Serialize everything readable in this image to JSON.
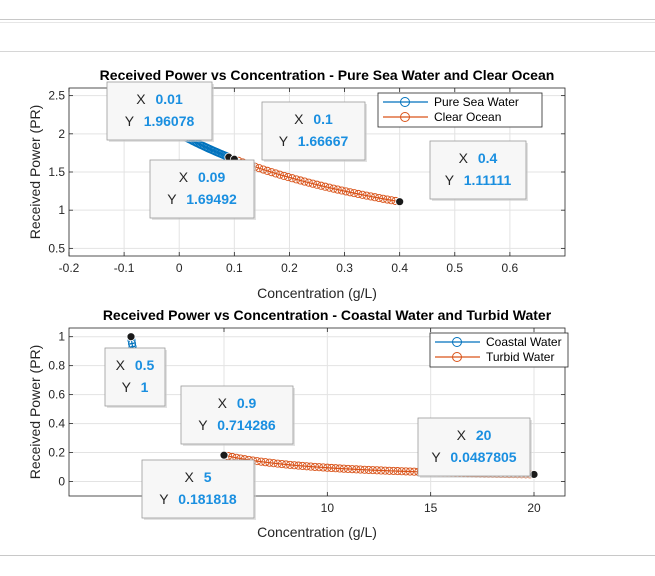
{
  "colors": {
    "series1": "#0072bd",
    "series2": "#d95319",
    "grid": "#e3e3e3",
    "axis": "#262626",
    "datatip_value": "#1a8fe0",
    "marker_dark": "#1a1a1a"
  },
  "chart_data": [
    {
      "type": "line",
      "title": "Received Power vs Concentration - Pure Sea Water and Clear Ocean",
      "xlabel": "Concentration (g/L)",
      "ylabel": "Received Power (PR)",
      "xlim": [
        -0.2,
        0.7
      ],
      "ylim": [
        0.4,
        2.6
      ],
      "xticks": [
        -0.2,
        -0.1,
        0,
        0.1,
        0.2,
        0.3,
        0.4,
        0.5,
        0.6
      ],
      "xtick_labels": [
        "-0.2",
        "-0.1",
        "0",
        "0.1",
        "0.2",
        "0.3",
        "0.4",
        "0.5",
        "0.6"
      ],
      "yticks": [
        0.5,
        1,
        1.5,
        2,
        2.5
      ],
      "ytick_labels": [
        "0.5",
        "1",
        "1.5",
        "2",
        "2.5"
      ],
      "grid": true,
      "legend_position": "top-right",
      "series": [
        {
          "name": "Pure Sea Water",
          "x_range": [
            0.01,
            0.09
          ],
          "step": 0.0025,
          "formula": "1/(0.5+c)",
          "marker": "circle"
        },
        {
          "name": "Clear Ocean",
          "x_range": [
            0.1,
            0.4
          ],
          "step": 0.0075,
          "formula": "1/(0.5+c)",
          "marker": "circle"
        }
      ],
      "datatips": [
        {
          "x_label": "X",
          "x_value": "0.01",
          "y_label": "Y",
          "y_value": "1.96078",
          "x": 0.01,
          "y": 1.96078
        },
        {
          "x_label": "X",
          "x_value": "0.09",
          "y_label": "Y",
          "y_value": "1.69492",
          "x": 0.09,
          "y": 1.69492
        },
        {
          "x_label": "X",
          "x_value": "0.1",
          "y_label": "Y",
          "y_value": "1.66667",
          "x": 0.1,
          "y": 1.66667
        },
        {
          "x_label": "X",
          "x_value": "0.4",
          "y_label": "Y",
          "y_value": "1.11111",
          "x": 0.4,
          "y": 1.11111
        }
      ]
    },
    {
      "type": "line",
      "title": "Received Power vs Concentration - Coastal Water and Turbid Water",
      "xlabel": "Concentration (g/L)",
      "ylabel": "Received Power (PR)",
      "xlim": [
        -2.5,
        21.5
      ],
      "ylim": [
        -0.1,
        1.06
      ],
      "xticks": [
        5,
        10,
        15,
        20
      ],
      "xtick_labels": [
        "5",
        "10",
        "15",
        "20"
      ],
      "yticks": [
        0,
        0.2,
        0.4,
        0.6,
        0.8,
        1
      ],
      "ytick_labels": [
        "0",
        "0.2",
        "0.4",
        "0.6",
        "0.8",
        "1"
      ],
      "grid": true,
      "legend_position": "top-right",
      "series": [
        {
          "name": "Coastal Water",
          "x_range": [
            0.5,
            0.9
          ],
          "step": 0.025,
          "formula": "1/(0.5+c)",
          "marker": "circle"
        },
        {
          "name": "Turbid Water",
          "x_range": [
            5,
            20
          ],
          "step": 0.2,
          "formula": "1/(0.5+c)",
          "marker": "circle"
        }
      ],
      "datatips": [
        {
          "x_label": "X",
          "x_value": "0.5",
          "y_label": "Y",
          "y_value": "1",
          "x": 0.5,
          "y": 1
        },
        {
          "x_label": "X",
          "x_value": "0.9",
          "y_label": "Y",
          "y_value": "0.714286",
          "x": 0.9,
          "y": 0.714286
        },
        {
          "x_label": "X",
          "x_value": "5",
          "y_label": "Y",
          "y_value": "0.181818",
          "x": 5,
          "y": 0.181818
        },
        {
          "x_label": "X",
          "x_value": "20",
          "y_label": "Y",
          "y_value": "0.0487805",
          "x": 20,
          "y": 0.0487805
        }
      ]
    }
  ]
}
